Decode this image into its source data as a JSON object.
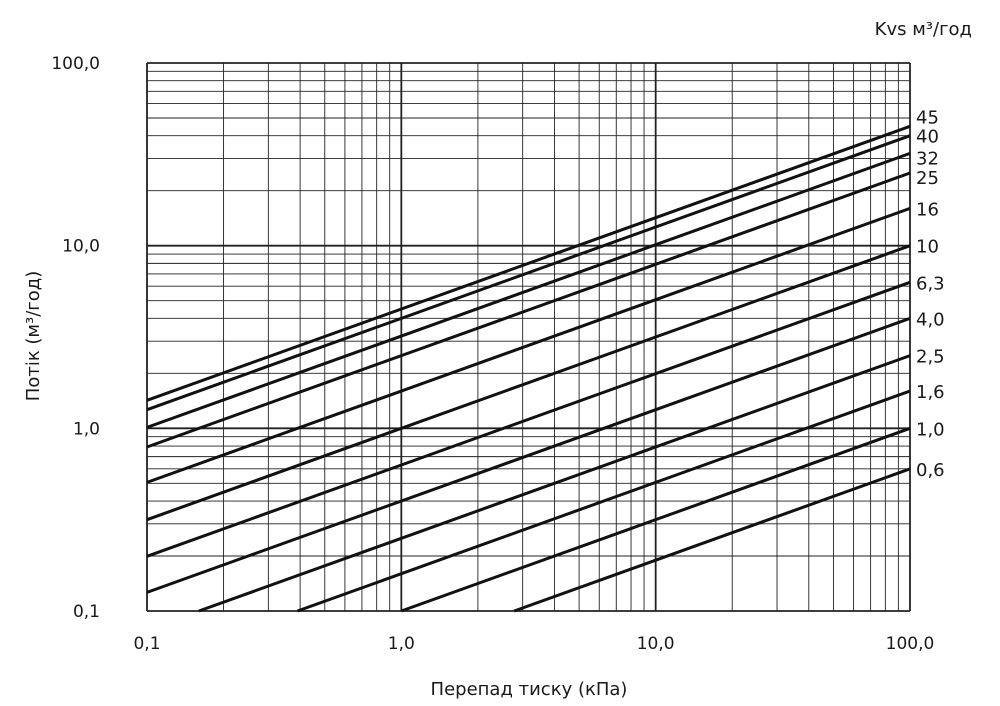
{
  "chart_data": {
    "type": "line",
    "scale": "log-log",
    "grid": true,
    "xlabel": "Перепад тиску (кПа)",
    "ylabel": "Потік (м³/год)",
    "legend_title": "Kvs м³/год",
    "legend_placement": "right",
    "xlim": [
      0.1,
      100
    ],
    "ylim": [
      0.1,
      100
    ],
    "x_ticks": [
      0.1,
      1,
      10,
      100
    ],
    "x_tick_labels": [
      "0,1",
      "1,0",
      "10,0",
      "100,0"
    ],
    "y_ticks": [
      0.1,
      1,
      10,
      100
    ],
    "y_tick_labels": [
      "0,1",
      "1,0",
      "10,0",
      "100,0"
    ],
    "formula": "Q = Kvs * sqrt(dp / 100)",
    "series": [
      {
        "name": "45",
        "kvs": 45
      },
      {
        "name": "40",
        "kvs": 40
      },
      {
        "name": "32",
        "kvs": 32
      },
      {
        "name": "25",
        "kvs": 25
      },
      {
        "name": "16",
        "kvs": 16
      },
      {
        "name": "10",
        "kvs": 10
      },
      {
        "name": "6,3",
        "kvs": 6.3
      },
      {
        "name": "4,0",
        "kvs": 4.0
      },
      {
        "name": "2,5",
        "kvs": 2.5
      },
      {
        "name": "1,6",
        "kvs": 1.6
      },
      {
        "name": "1,0",
        "kvs": 1.0
      },
      {
        "name": "0,6",
        "kvs": 0.6
      }
    ]
  }
}
